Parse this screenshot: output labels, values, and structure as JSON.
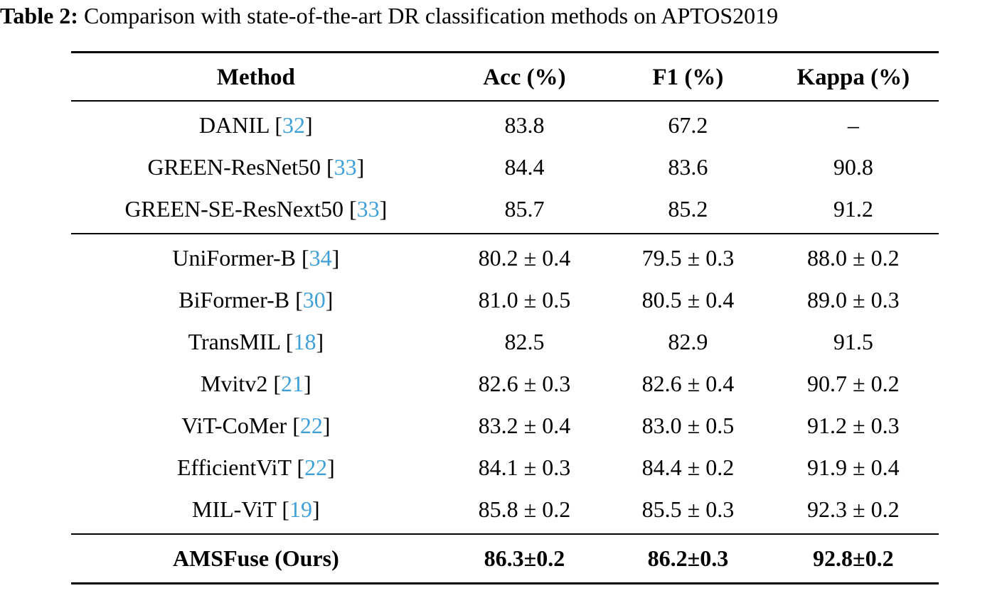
{
  "caption": {
    "label": "Table 2:",
    "text": " Comparison with state-of-the-art DR classification methods on APTOS2019"
  },
  "table": {
    "columns": [
      "Method",
      "Acc (%)",
      "F1 (%)",
      "Kappa (%)"
    ],
    "citation_color": "#3fa0d8",
    "groups": [
      {
        "name": "cnn-baselines",
        "rows": [
          {
            "method": "DANIL",
            "cite": "32",
            "acc": "83.8",
            "f1": "67.2",
            "kappa": "–"
          },
          {
            "method": "GREEN-ResNet50",
            "cite": "33",
            "acc": "84.4",
            "f1": "83.6",
            "kappa": "90.8"
          },
          {
            "method": "GREEN-SE-ResNext50",
            "cite": "33",
            "acc": "85.7",
            "f1": "85.2",
            "kappa": "91.2"
          }
        ]
      },
      {
        "name": "transformer-baselines",
        "rows": [
          {
            "method": "UniFormer-B",
            "cite": "34",
            "acc": "80.2 ± 0.4",
            "f1": "79.5 ± 0.3",
            "kappa": "88.0 ± 0.2"
          },
          {
            "method": "BiFormer-B",
            "cite": "30",
            "acc": "81.0 ± 0.5",
            "f1": "80.5 ± 0.4",
            "kappa": "89.0 ± 0.3"
          },
          {
            "method": "TransMIL",
            "cite": "18",
            "acc": "82.5",
            "f1": "82.9",
            "kappa": "91.5"
          },
          {
            "method": "Mvitv2",
            "cite": "21",
            "acc": "82.6 ± 0.3",
            "f1": "82.6 ± 0.4",
            "kappa": "90.7 ± 0.2"
          },
          {
            "method": "ViT-CoMer",
            "cite": "22",
            "acc": "83.2 ± 0.4",
            "f1": "83.0 ± 0.5",
            "kappa": "91.2 ± 0.3"
          },
          {
            "method": "EfficientViT",
            "cite": "22",
            "acc": "84.1 ± 0.3",
            "f1": "84.4 ± 0.2",
            "kappa": "91.9 ± 0.4"
          },
          {
            "method": "MIL-ViT",
            "cite": "19",
            "acc": "85.8 ± 0.2",
            "f1": "85.5 ± 0.3",
            "kappa": "92.3 ± 0.2"
          }
        ]
      },
      {
        "name": "ours",
        "bold": true,
        "rows": [
          {
            "method": "AMSFuse (Ours)",
            "cite": null,
            "acc": "86.3±0.2",
            "f1": "86.2±0.3",
            "kappa": "92.8±0.2"
          }
        ]
      }
    ]
  }
}
